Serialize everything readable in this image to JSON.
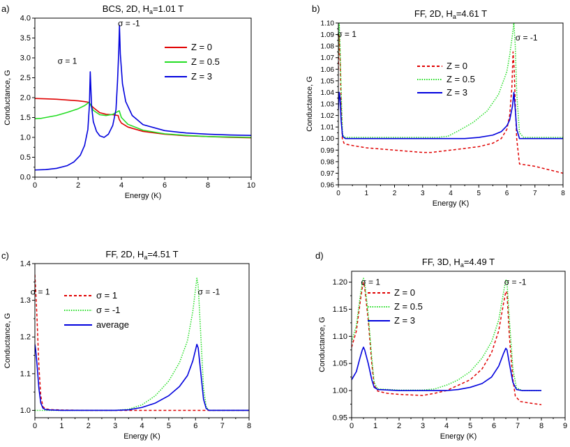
{
  "chart_data": [
    {
      "panel_label": "a)",
      "type": "line",
      "title_parts": [
        "BCS, 2D, H",
        "a",
        "=1.01 T"
      ],
      "xlabel": "Energy (K)",
      "ylabel": "Conductance, G",
      "xlim": [
        0,
        10
      ],
      "ylim": [
        0,
        4
      ],
      "xticks": [
        0,
        2,
        4,
        6,
        8,
        10
      ],
      "xtick_labels": [
        "0",
        "2",
        "4",
        "6",
        "8",
        "10"
      ],
      "yticks": [
        0,
        0.5,
        1,
        1.5,
        2,
        2.5,
        3,
        3.5,
        4
      ],
      "ytick_labels": [
        "0.0",
        "0.5",
        "1.0",
        "1.5",
        "2.0",
        "2.5",
        "3.0",
        "3.5",
        "4.0"
      ],
      "legend_position": "top-right",
      "annotations": [
        {
          "text": "σ = 1",
          "x": 1.5,
          "y": 2.85
        },
        {
          "text": "σ = -1",
          "x": 4.35,
          "y": 3.8
        }
      ],
      "series": [
        {
          "name": "Z = 0",
          "color": "#e00000",
          "style": "solid",
          "x": [
            0,
            0.5,
            1,
            1.5,
            2,
            2.3,
            2.5,
            2.55,
            2.7,
            3,
            3.3,
            3.6,
            3.85,
            3.9,
            4.0,
            4.3,
            5,
            6,
            7,
            8,
            9,
            10
          ],
          "y": [
            1.98,
            1.97,
            1.96,
            1.94,
            1.92,
            1.9,
            1.88,
            1.84,
            1.75,
            1.62,
            1.58,
            1.57,
            1.55,
            1.45,
            1.36,
            1.26,
            1.15,
            1.08,
            1.04,
            1.02,
            1.0,
            0.99
          ]
        },
        {
          "name": "Z = 0.5",
          "color": "#22dd22",
          "style": "solid",
          "x": [
            0,
            0.3,
            1,
            1.5,
            2,
            2.3,
            2.5,
            2.55,
            2.7,
            3,
            3.3,
            3.6,
            3.8,
            3.9,
            4.0,
            4.3,
            5,
            6,
            7,
            8,
            9,
            10
          ],
          "y": [
            1.47,
            1.48,
            1.55,
            1.63,
            1.72,
            1.8,
            1.88,
            1.84,
            1.68,
            1.57,
            1.55,
            1.58,
            1.64,
            1.67,
            1.5,
            1.33,
            1.18,
            1.09,
            1.05,
            1.02,
            1.01,
            1.0
          ]
        },
        {
          "name": "Z = 3",
          "color": "#0000dd",
          "style": "solid",
          "x": [
            0,
            0.5,
            1,
            1.5,
            1.8,
            2.1,
            2.3,
            2.45,
            2.52,
            2.56,
            2.62,
            2.7,
            2.85,
            3.0,
            3.2,
            3.4,
            3.6,
            3.75,
            3.82,
            3.88,
            3.91,
            3.95,
            4.05,
            4.2,
            4.5,
            5,
            6,
            7,
            8,
            9,
            10
          ],
          "y": [
            0.18,
            0.19,
            0.22,
            0.29,
            0.38,
            0.55,
            0.8,
            1.2,
            1.8,
            2.65,
            1.8,
            1.4,
            1.15,
            1.04,
            1.0,
            1.08,
            1.3,
            1.7,
            2.4,
            3.2,
            3.82,
            3.1,
            2.35,
            1.9,
            1.55,
            1.32,
            1.17,
            1.11,
            1.08,
            1.06,
            1.05
          ]
        }
      ]
    },
    {
      "panel_label": "b)",
      "type": "line",
      "title_parts": [
        "FF, 2D, H",
        "a",
        "=4.61 T"
      ],
      "xlabel": "Energy (K)",
      "ylabel": "Conductance, G",
      "xlim": [
        0,
        8
      ],
      "ylim": [
        0.96,
        1.1
      ],
      "xticks": [
        0,
        1,
        2,
        3,
        4,
        5,
        6,
        7,
        8
      ],
      "xtick_labels": [
        "0",
        "1",
        "2",
        "3",
        "4",
        "5",
        "6",
        "7",
        "8"
      ],
      "yticks": [
        0.96,
        0.97,
        0.98,
        0.99,
        1.0,
        1.01,
        1.02,
        1.03,
        1.04,
        1.05,
        1.06,
        1.07,
        1.08,
        1.09,
        1.1
      ],
      "ytick_labels": [
        "0.96",
        "0.97",
        "0.98",
        "0.99",
        "1.00",
        "1.01",
        "1.02",
        "1.03",
        "1.04",
        "1.05",
        "1.06",
        "1.07",
        "1.08",
        "1.09",
        "1.10"
      ],
      "legend_position": "center-top",
      "annotations": [
        {
          "text": "σ = 1",
          "x": 0.3,
          "y": 1.088
        },
        {
          "text": "σ = -1",
          "x": 6.7,
          "y": 1.085
        }
      ],
      "series": [
        {
          "name": "Z = 0",
          "color": "#e00000",
          "style": "dashed",
          "x": [
            0,
            0.03,
            0.06,
            0.1,
            0.14,
            0.2,
            0.3,
            0.5,
            1,
            2,
            3,
            3.3,
            4,
            5,
            5.5,
            5.8,
            6.0,
            6.1,
            6.18,
            6.22,
            6.26,
            6.3,
            6.35,
            6.45,
            7,
            7.5,
            8
          ],
          "y": [
            1.06,
            1.09,
            1.07,
            1.03,
            1.0,
            0.996,
            0.995,
            0.994,
            0.992,
            0.99,
            0.988,
            0.988,
            0.99,
            0.993,
            0.996,
            1.0,
            1.008,
            1.02,
            1.045,
            1.075,
            1.06,
            1.03,
            1.0,
            0.978,
            0.976,
            0.973,
            0.97
          ]
        },
        {
          "name": "Z = 0.5",
          "color": "#22dd22",
          "style": "dotted",
          "x": [
            0,
            0.03,
            0.06,
            0.1,
            0.15,
            0.25,
            0.5,
            1,
            2,
            3,
            3.5,
            3.9,
            4.3,
            4.8,
            5.3,
            5.7,
            6.0,
            6.1,
            6.2,
            6.25,
            6.3,
            6.35,
            6.45,
            6.6,
            7,
            8
          ],
          "y": [
            1.07,
            1.1,
            1.08,
            1.04,
            1.003,
            1.001,
            1.001,
            1.001,
            1.001,
            1.001,
            1.001,
            1.002,
            1.007,
            1.014,
            1.024,
            1.038,
            1.058,
            1.072,
            1.09,
            1.1,
            1.08,
            1.04,
            1.005,
            1.001,
            1.001,
            1.001
          ]
        },
        {
          "name": "Z = 3",
          "color": "#0000dd",
          "style": "solid",
          "x": [
            0,
            0.03,
            0.06,
            0.1,
            0.15,
            0.25,
            0.5,
            1,
            2,
            3,
            4,
            4.5,
            5,
            5.5,
            5.8,
            6.0,
            6.1,
            6.2,
            6.25,
            6.3,
            6.35,
            6.45,
            6.6,
            7,
            8
          ],
          "y": [
            1.025,
            1.04,
            1.035,
            1.015,
            1.002,
            1.0,
            1.0,
            1.0,
            1.0,
            1.0,
            1.0,
            1.0,
            1.001,
            1.003,
            1.006,
            1.011,
            1.016,
            1.028,
            1.04,
            1.025,
            1.008,
            1.0,
            1.0,
            1.0,
            1.0
          ]
        }
      ]
    },
    {
      "panel_label": "c)",
      "type": "line",
      "title_parts": [
        "FF, 2D, H",
        "a",
        "=4.51 T"
      ],
      "xlabel": "Energy (K)",
      "ylabel": "Conductance, G",
      "xlim": [
        0,
        8
      ],
      "ylim": [
        0.98,
        1.4
      ],
      "xticks": [
        0,
        1,
        2,
        3,
        4,
        5,
        6,
        7,
        8
      ],
      "xtick_labels": [
        "0",
        "1",
        "2",
        "3",
        "4",
        "5",
        "6",
        "7",
        "8"
      ],
      "yticks": [
        1.0,
        1.1,
        1.2,
        1.3,
        1.4
      ],
      "ytick_labels": [
        "1.0",
        "1.1",
        "1.2",
        "1.3",
        "1.4"
      ],
      "legend_position": "top-left",
      "annotations": [
        {
          "text": "σ = 1",
          "x": 0.2,
          "y": 1.315
        },
        {
          "text": "σ = -1",
          "x": 6.5,
          "y": 1.315
        }
      ],
      "series": [
        {
          "name": "σ = 1",
          "color": "#e00000",
          "style": "dashed",
          "x": [
            0,
            0.03,
            0.08,
            0.15,
            0.22,
            0.3,
            0.4,
            0.6,
            1,
            2,
            3,
            4,
            5,
            6,
            7,
            8
          ],
          "y": [
            1.37,
            1.33,
            1.25,
            1.12,
            1.04,
            1.01,
            1.004,
            1.002,
            1.001,
            1.0,
            1.0,
            1.0,
            1.0,
            1.0,
            1.0,
            1.0
          ]
        },
        {
          "name": "σ  = -1",
          "color": "#22dd22",
          "style": "dotted",
          "x": [
            0,
            1,
            2,
            3,
            3.5,
            4,
            4.5,
            5,
            5.4,
            5.7,
            5.9,
            6.0,
            6.05,
            6.1,
            6.2,
            6.3,
            6.4,
            6.5,
            7,
            8
          ],
          "y": [
            1.0,
            1.0,
            1.0,
            1.0,
            1.003,
            1.015,
            1.04,
            1.08,
            1.13,
            1.19,
            1.27,
            1.33,
            1.36,
            1.34,
            1.2,
            1.06,
            1.01,
            1.0,
            1.0,
            1.0
          ]
        },
        {
          "name": "average",
          "color": "#0000dd",
          "style": "solid",
          "x": [
            0,
            0.03,
            0.08,
            0.15,
            0.22,
            0.3,
            0.4,
            0.6,
            1,
            2,
            3,
            3.5,
            4,
            4.5,
            5,
            5.4,
            5.7,
            5.9,
            6.0,
            6.05,
            6.1,
            6.2,
            6.3,
            6.4,
            6.5,
            7,
            8
          ],
          "y": [
            1.18,
            1.165,
            1.125,
            1.06,
            1.02,
            1.006,
            1.002,
            1.001,
            1.0,
            1.0,
            1.0,
            1.0015,
            1.008,
            1.02,
            1.04,
            1.065,
            1.095,
            1.135,
            1.165,
            1.18,
            1.17,
            1.1,
            1.03,
            1.005,
            1.0,
            1.0,
            1.0
          ]
        }
      ]
    },
    {
      "panel_label": "d)",
      "type": "line",
      "title_parts": [
        "FF, 3D, H",
        "a",
        "=4.49 T"
      ],
      "xlabel": "Energy (K)",
      "ylabel": "Conductance, G",
      "xlim": [
        0,
        9
      ],
      "ylim": [
        0.95,
        1.22
      ],
      "xticks": [
        0,
        1,
        2,
        3,
        4,
        5,
        6,
        7,
        8,
        9
      ],
      "xtick_labels": [
        "0",
        "1",
        "2",
        "3",
        "4",
        "5",
        "6",
        "7",
        "8",
        "9"
      ],
      "yticks": [
        0.95,
        1.0,
        1.05,
        1.1,
        1.15,
        1.2
      ],
      "ytick_labels": [
        "0.95",
        "1.00",
        "1.05",
        "1.10",
        "1.15",
        "1.20"
      ],
      "legend_position": "top-left",
      "annotations": [
        {
          "text": "σ = 1",
          "x": 0.8,
          "y": 1.195
        },
        {
          "text": "σ = -1",
          "x": 6.9,
          "y": 1.195
        }
      ],
      "series": [
        {
          "name": "Z = 0",
          "color": "#e00000",
          "style": "dashed",
          "x": [
            0,
            0.2,
            0.35,
            0.45,
            0.5,
            0.55,
            0.7,
            0.85,
            0.95,
            1.1,
            1.5,
            2,
            3,
            3.5,
            4,
            5,
            5.5,
            5.9,
            6.2,
            6.4,
            6.5,
            6.55,
            6.65,
            6.8,
            6.9,
            7.1,
            7.5,
            8
          ],
          "y": [
            1.08,
            1.11,
            1.16,
            1.19,
            1.2,
            1.19,
            1.13,
            1.05,
            1.01,
            0.999,
            0.995,
            0.993,
            0.991,
            0.995,
            1.0,
            1.02,
            1.04,
            1.07,
            1.11,
            1.16,
            1.183,
            1.18,
            1.1,
            1.02,
            0.99,
            0.98,
            0.977,
            0.974
          ]
        },
        {
          "name": "Z = 0.5",
          "color": "#22dd22",
          "style": "dotted",
          "x": [
            0,
            0.2,
            0.35,
            0.45,
            0.5,
            0.55,
            0.7,
            0.85,
            0.95,
            1.1,
            2,
            3,
            3.5,
            4,
            4.5,
            5,
            5.5,
            5.9,
            6.2,
            6.4,
            6.5,
            6.55,
            6.65,
            6.8,
            6.95,
            7.2,
            8
          ],
          "y": [
            1.09,
            1.12,
            1.17,
            1.2,
            1.207,
            1.2,
            1.14,
            1.06,
            1.015,
            1.003,
            1.001,
            1.001,
            1.003,
            1.01,
            1.02,
            1.035,
            1.06,
            1.09,
            1.13,
            1.18,
            1.205,
            1.2,
            1.13,
            1.04,
            1.005,
            1.0,
            1.0
          ]
        },
        {
          "name": "Z = 3",
          "color": "#0000dd",
          "style": "solid",
          "x": [
            0,
            0.2,
            0.35,
            0.45,
            0.5,
            0.55,
            0.7,
            0.85,
            0.95,
            1.1,
            2,
            3,
            4,
            4.5,
            5,
            5.5,
            5.9,
            6.2,
            6.4,
            6.5,
            6.55,
            6.65,
            6.8,
            6.95,
            7.2,
            8
          ],
          "y": [
            1.02,
            1.035,
            1.06,
            1.075,
            1.08,
            1.075,
            1.05,
            1.02,
            1.006,
            1.002,
            1.0,
            1.0,
            1.0,
            1.002,
            1.006,
            1.013,
            1.025,
            1.045,
            1.068,
            1.078,
            1.075,
            1.05,
            1.015,
            1.002,
            1.0,
            1.0
          ]
        }
      ]
    }
  ]
}
